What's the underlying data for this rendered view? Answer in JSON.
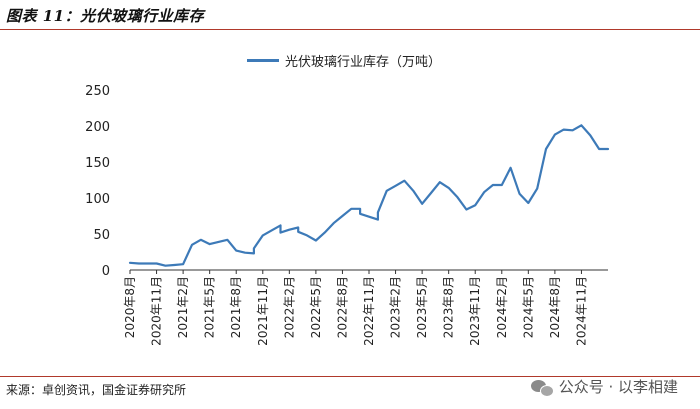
{
  "header": {
    "title": "图表 11：光伏玻璃行业库存"
  },
  "chart_data": {
    "type": "line",
    "title": "",
    "xlabel": "",
    "ylabel": "",
    "ylim": [
      0,
      250
    ],
    "yticks": [
      0,
      50,
      100,
      150,
      200,
      250
    ],
    "x_tick_labels": [
      "2020年8月",
      "2020年11月",
      "2021年2月",
      "2021年5月",
      "2021年8月",
      "2021年11月",
      "2022年2月",
      "2022年5月",
      "2022年8月",
      "2022年11月",
      "2023年2月",
      "2023年5月",
      "2023年8月",
      "2023年11月",
      "2024年2月",
      "2024年5月",
      "2024年8月",
      "2024年11月"
    ],
    "legend_position": "top",
    "grid": false,
    "series": [
      {
        "name": "光伏玻璃行业库存（万吨）",
        "color": "#3d7ab8",
        "points": [
          [
            "2020-08",
            10
          ],
          [
            "2020-09",
            9
          ],
          [
            "2020-10",
            9
          ],
          [
            "2020-11",
            9
          ],
          [
            "2020-12",
            6
          ],
          [
            "2021-01",
            7
          ],
          [
            "2021-02",
            8
          ],
          [
            "2021-03",
            35
          ],
          [
            "2021-04",
            42
          ],
          [
            "2021-05",
            36
          ],
          [
            "2021-06",
            39
          ],
          [
            "2021-07",
            42
          ],
          [
            "2021-08",
            27
          ],
          [
            "2021-09",
            24
          ],
          [
            "2021-10",
            23
          ],
          [
            "2021-10",
            30
          ],
          [
            "2021-11",
            48
          ],
          [
            "2021-12",
            55
          ],
          [
            "2022-01",
            62
          ],
          [
            "2022-01",
            52
          ],
          [
            "2022-02",
            56
          ],
          [
            "2022-03",
            59
          ],
          [
            "2022-03",
            53
          ],
          [
            "2022-04",
            48
          ],
          [
            "2022-05",
            41
          ],
          [
            "2022-06",
            52
          ],
          [
            "2022-07",
            65
          ],
          [
            "2022-08",
            75
          ],
          [
            "2022-09",
            85
          ],
          [
            "2022-10",
            85
          ],
          [
            "2022-10",
            78
          ],
          [
            "2022-11",
            74
          ],
          [
            "2022-12",
            70
          ],
          [
            "2022-12",
            80
          ],
          [
            "2023-01",
            110
          ],
          [
            "2023-02",
            117
          ],
          [
            "2023-03",
            124
          ],
          [
            "2023-04",
            110
          ],
          [
            "2023-05",
            92
          ],
          [
            "2023-06",
            107
          ],
          [
            "2023-07",
            122
          ],
          [
            "2023-08",
            114
          ],
          [
            "2023-09",
            101
          ],
          [
            "2023-10",
            84
          ],
          [
            "2023-11",
            90
          ],
          [
            "2023-12",
            108
          ],
          [
            "2024-01",
            118
          ],
          [
            "2024-02",
            118
          ],
          [
            "2024-03",
            142
          ],
          [
            "2024-04",
            106
          ],
          [
            "2024-05",
            93
          ],
          [
            "2024-06",
            113
          ],
          [
            "2024-07",
            168
          ],
          [
            "2024-08",
            188
          ],
          [
            "2024-09",
            195
          ],
          [
            "2024-10",
            194
          ],
          [
            "2024-11",
            201
          ],
          [
            "2024-12",
            187
          ],
          [
            "2025-01",
            168
          ],
          [
            "2025-02",
            168
          ]
        ]
      }
    ]
  },
  "footer": {
    "source": "来源：卓创资讯，国金证券研究所",
    "watermark": "公众号 · 以李相建",
    "watermark_icon": "wechat-icon"
  }
}
